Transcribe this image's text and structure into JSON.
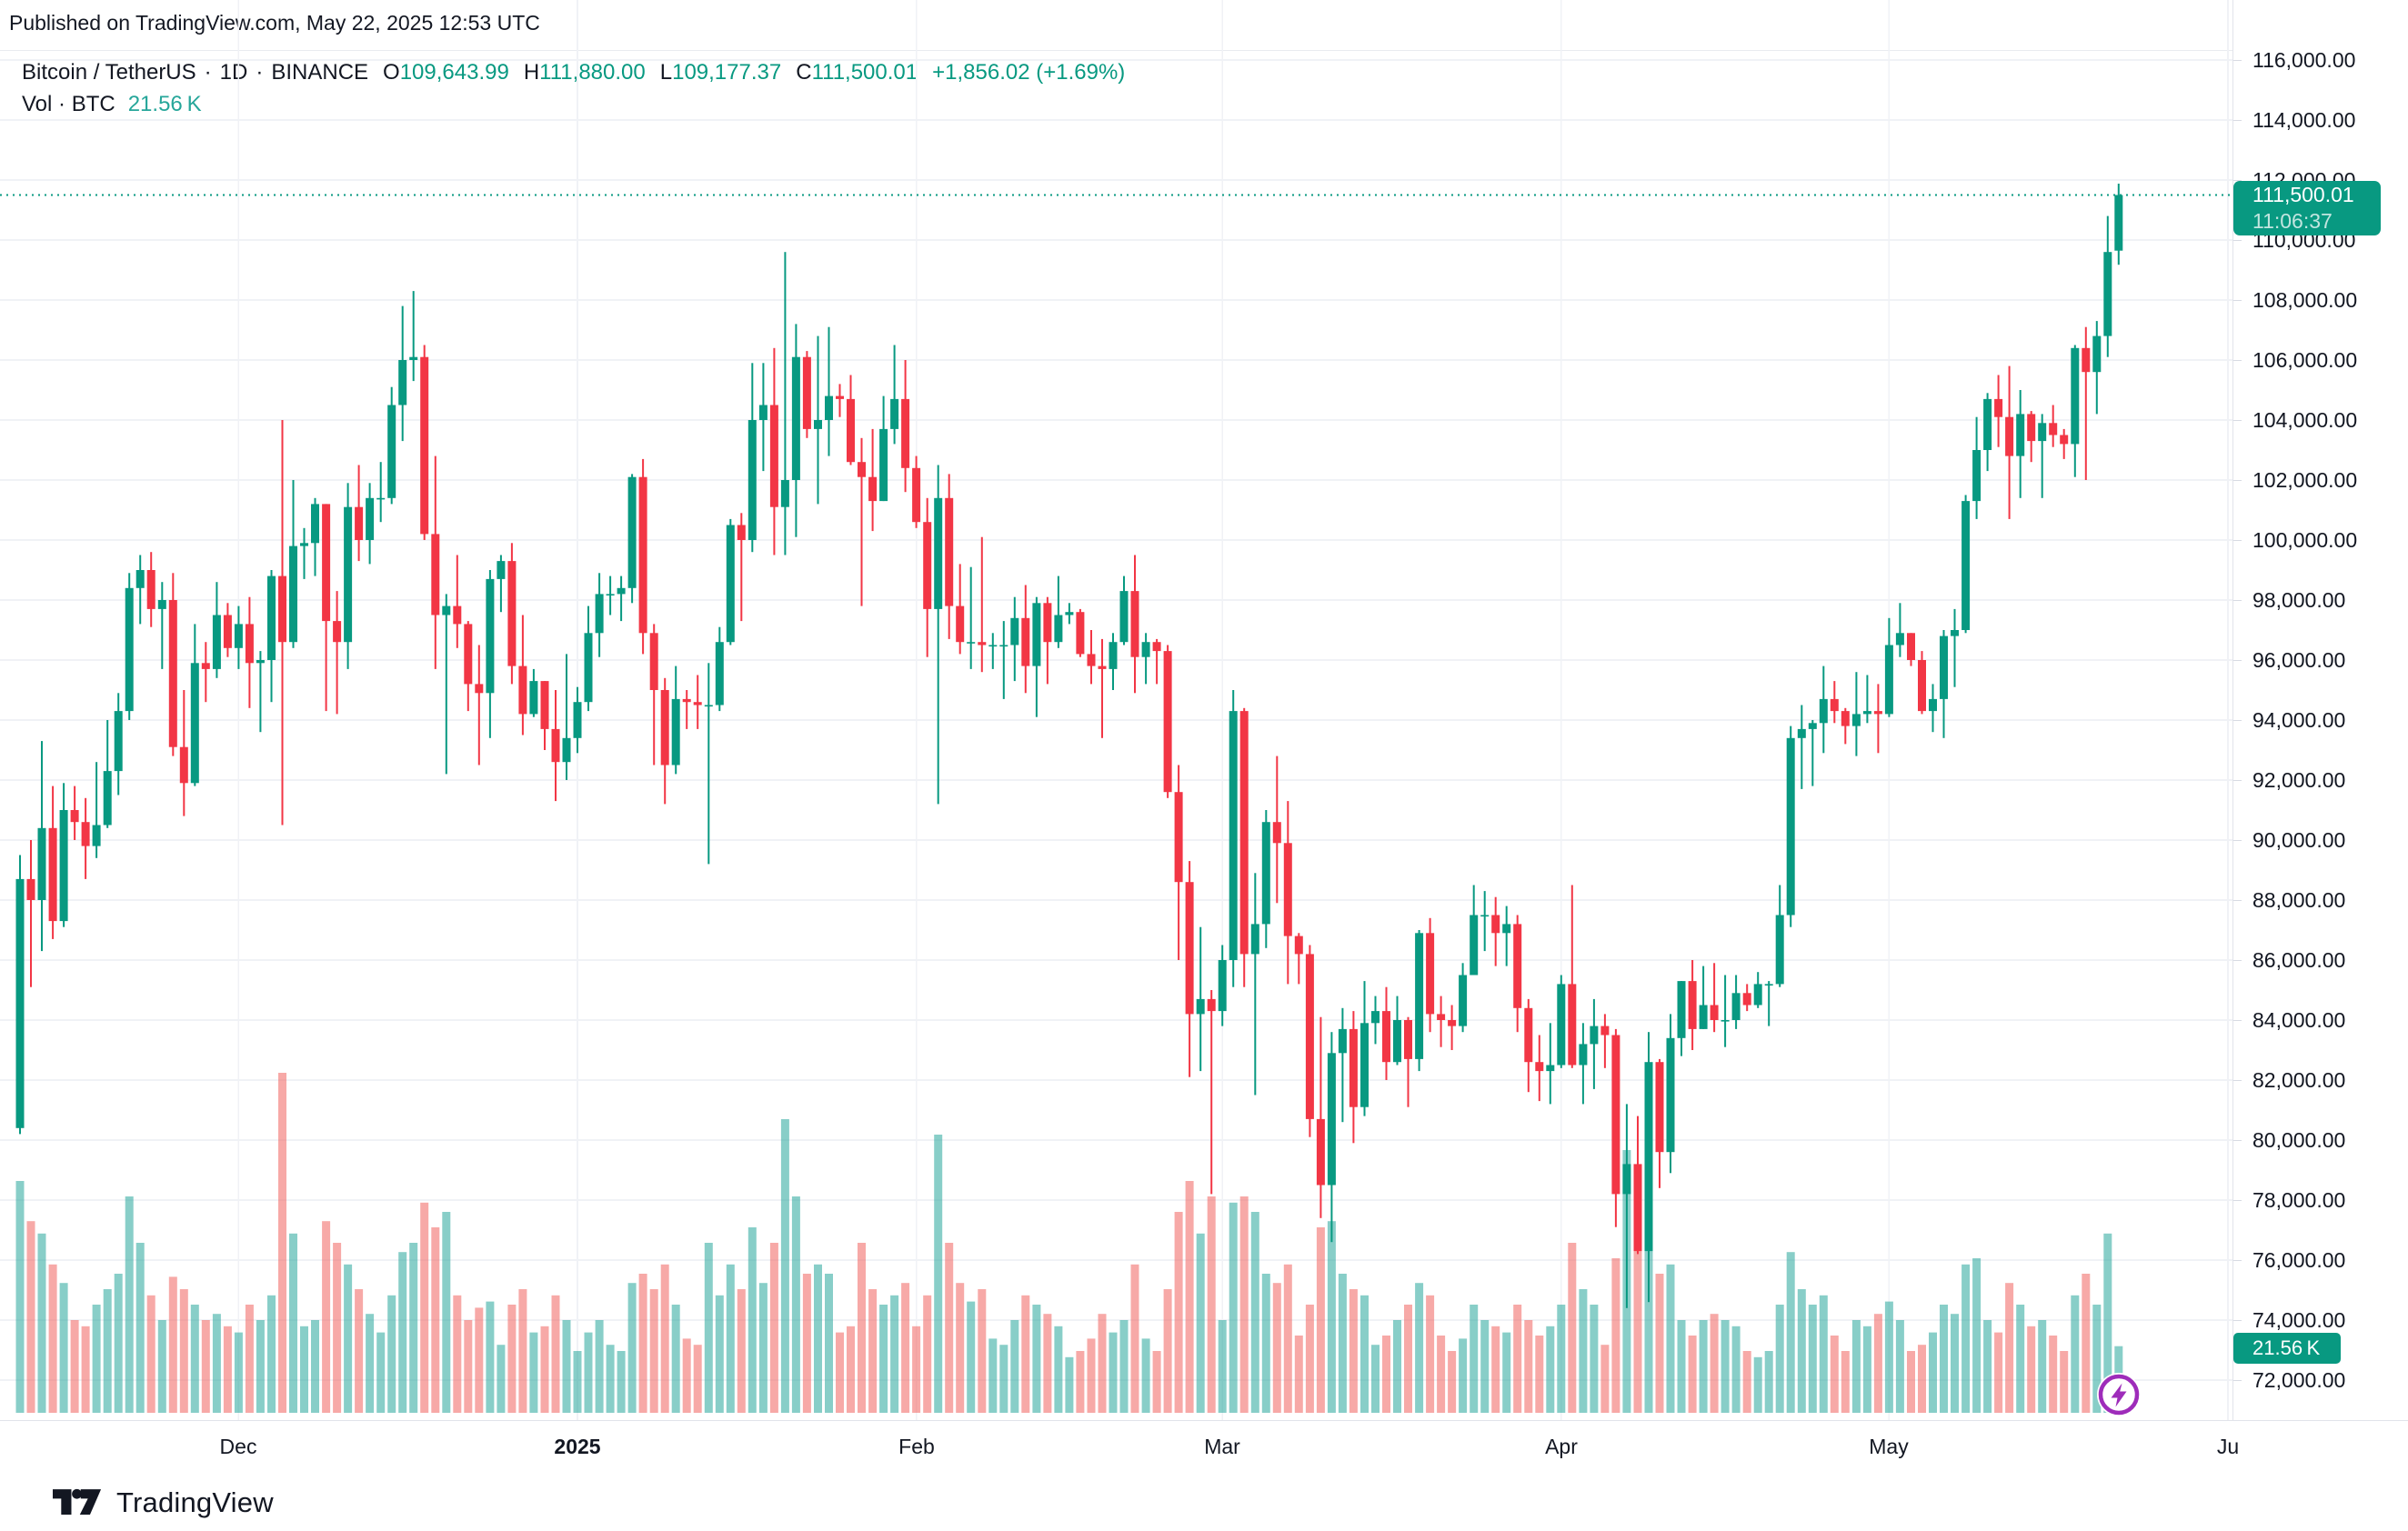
{
  "page": {
    "published": "Published on TradingView.com, May 22, 2025 12:53 UTC"
  },
  "header": {
    "symbol": "Bitcoin / TetherUS",
    "sep": "·",
    "interval": "1D",
    "exchange": "BINANCE",
    "open_label": "O",
    "open": "109,643.99",
    "high_label": "H",
    "high": "111,880.00",
    "low_label": "L",
    "low": "109,177.37",
    "close_label": "C",
    "close": "111,500.01",
    "change": "+1,856.02 (+1.69%)",
    "volume_label": "Vol · BTC",
    "volume_value": "21.56 K"
  },
  "price_badge": {
    "price": "111,500.01",
    "countdown": "11:06:37"
  },
  "volume_badge": {
    "value": "21.56 K"
  },
  "footer": {
    "brand": "TradingView"
  },
  "chart_data": {
    "type": "candlestick",
    "title": "Bitcoin / TetherUS · 1D · BINANCE",
    "interval": "1D",
    "first_candle_date": "2024-11-11",
    "last_candle_date": "2025-05-22",
    "price_axis": {
      "min": 72000,
      "max": 116000,
      "step": 2000
    },
    "volume_axis": {
      "unit": "K BTC",
      "last_volume": 21.56,
      "max_volume": 110
    },
    "last_close": 111500.01,
    "grid": true,
    "legend_position": "none",
    "time_axis": {
      "labels": [
        {
          "label": "Dec",
          "day": 20
        },
        {
          "label": "2025",
          "day": 51,
          "bold": true
        },
        {
          "label": "Feb",
          "day": 82
        },
        {
          "label": "Mar",
          "day": 110
        },
        {
          "label": "Apr",
          "day": 141
        },
        {
          "label": "May",
          "day": 171
        },
        {
          "label": "Ju",
          "day": 202
        }
      ]
    },
    "colors": {
      "up": "#089981",
      "down": "#F23645",
      "volume_up": "rgba(38,166,154,0.55)",
      "volume_down": "rgba(239,83,80,0.5)",
      "volume_text": "#26a69a",
      "text": "#131722",
      "grid": "#f0f2f6",
      "axis_border": "#e1e3ea",
      "badge_bg": "#089981",
      "boost_purple": "#9E2CBA"
    },
    "candles_format": "[open, high, low, close, volumeK] in thousand USD, one calendar day each starting 2024-11-11",
    "candles": [
      [
        80.4,
        89.5,
        80.2,
        88.7,
        75
      ],
      [
        88.7,
        90.0,
        85.1,
        88.0,
        62
      ],
      [
        88.0,
        93.3,
        86.3,
        90.4,
        58
      ],
      [
        90.4,
        91.8,
        86.7,
        87.3,
        48
      ],
      [
        87.3,
        91.9,
        87.1,
        91.0,
        42
      ],
      [
        91.0,
        91.8,
        90.0,
        90.6,
        30
      ],
      [
        90.6,
        91.4,
        88.7,
        89.8,
        28
      ],
      [
        89.8,
        92.6,
        89.4,
        90.5,
        35
      ],
      [
        90.5,
        94.0,
        90.4,
        92.3,
        40
      ],
      [
        92.3,
        94.9,
        91.5,
        94.3,
        45
      ],
      [
        94.3,
        98.9,
        94.0,
        98.4,
        70
      ],
      [
        98.4,
        99.5,
        97.2,
        99.0,
        55
      ],
      [
        99.0,
        99.6,
        97.1,
        97.7,
        38
      ],
      [
        97.7,
        98.6,
        95.7,
        98.0,
        30
      ],
      [
        98.0,
        98.9,
        92.8,
        93.1,
        44
      ],
      [
        93.1,
        95.0,
        90.8,
        91.9,
        40
      ],
      [
        91.9,
        97.2,
        91.8,
        95.9,
        35
      ],
      [
        95.9,
        96.6,
        94.6,
        95.7,
        30
      ],
      [
        95.7,
        98.6,
        95.4,
        97.5,
        32
      ],
      [
        97.5,
        97.9,
        96.1,
        96.4,
        28
      ],
      [
        96.4,
        97.8,
        95.7,
        97.2,
        26
      ],
      [
        97.2,
        98.1,
        94.4,
        95.9,
        35
      ],
      [
        95.9,
        96.3,
        93.6,
        96.0,
        30
      ],
      [
        96.0,
        99.0,
        94.6,
        98.8,
        38
      ],
      [
        98.8,
        104.0,
        90.5,
        96.6,
        110
      ],
      [
        96.6,
        102.0,
        96.4,
        99.8,
        58
      ],
      [
        99.8,
        100.4,
        98.7,
        99.9,
        28
      ],
      [
        99.9,
        101.4,
        98.8,
        101.2,
        30
      ],
      [
        101.2,
        101.2,
        94.3,
        97.3,
        62
      ],
      [
        97.3,
        98.3,
        94.2,
        96.6,
        55
      ],
      [
        96.6,
        101.9,
        95.7,
        101.1,
        48
      ],
      [
        101.1,
        102.5,
        99.3,
        100.0,
        40
      ],
      [
        100.0,
        101.9,
        99.2,
        101.4,
        32
      ],
      [
        101.4,
        102.6,
        100.6,
        101.4,
        26
      ],
      [
        101.4,
        105.1,
        101.2,
        104.5,
        38
      ],
      [
        104.5,
        107.8,
        103.3,
        106.0,
        52
      ],
      [
        106.0,
        108.3,
        105.3,
        106.1,
        55
      ],
      [
        106.1,
        106.5,
        100.0,
        100.2,
        68
      ],
      [
        100.2,
        102.8,
        95.7,
        97.5,
        60
      ],
      [
        97.5,
        98.2,
        92.2,
        97.8,
        65
      ],
      [
        97.8,
        99.5,
        96.4,
        97.2,
        38
      ],
      [
        97.2,
        97.3,
        94.3,
        95.2,
        30
      ],
      [
        95.2,
        96.5,
        92.5,
        94.9,
        34
      ],
      [
        94.9,
        99.0,
        93.4,
        98.7,
        36
      ],
      [
        98.7,
        99.5,
        97.6,
        99.3,
        22
      ],
      [
        99.3,
        99.9,
        95.2,
        95.8,
        35
      ],
      [
        95.8,
        97.5,
        93.5,
        94.2,
        40
      ],
      [
        94.2,
        95.7,
        94.1,
        95.3,
        26
      ],
      [
        95.3,
        95.3,
        93.0,
        93.7,
        28
      ],
      [
        93.7,
        95.0,
        91.3,
        92.6,
        38
      ],
      [
        92.6,
        96.2,
        92.0,
        93.4,
        30
      ],
      [
        93.4,
        95.1,
        92.9,
        94.6,
        20
      ],
      [
        94.6,
        97.8,
        94.3,
        96.9,
        26
      ],
      [
        96.9,
        98.9,
        96.1,
        98.2,
        30
      ],
      [
        98.2,
        98.8,
        97.5,
        98.2,
        22
      ],
      [
        98.2,
        98.8,
        97.3,
        98.4,
        20
      ],
      [
        98.4,
        102.2,
        97.9,
        102.1,
        42
      ],
      [
        102.1,
        102.7,
        96.2,
        96.9,
        45
      ],
      [
        96.9,
        97.2,
        92.5,
        95.0,
        40
      ],
      [
        95.0,
        95.4,
        91.2,
        92.5,
        48
      ],
      [
        92.5,
        95.8,
        92.2,
        94.7,
        35
      ],
      [
        94.7,
        95.0,
        93.7,
        94.6,
        24
      ],
      [
        94.6,
        95.5,
        93.7,
        94.5,
        22
      ],
      [
        94.5,
        95.9,
        89.2,
        94.5,
        55
      ],
      [
        94.5,
        97.1,
        94.3,
        96.6,
        38
      ],
      [
        96.6,
        100.7,
        96.5,
        100.5,
        48
      ],
      [
        100.5,
        100.9,
        97.3,
        100.0,
        40
      ],
      [
        100.0,
        105.9,
        99.6,
        104.0,
        60
      ],
      [
        104.0,
        105.9,
        102.3,
        104.5,
        42
      ],
      [
        104.5,
        106.4,
        99.5,
        101.1,
        55
      ],
      [
        101.1,
        109.6,
        99.5,
        102.0,
        95
      ],
      [
        102.0,
        107.2,
        100.1,
        106.1,
        70
      ],
      [
        106.1,
        106.3,
        103.4,
        103.7,
        45
      ],
      [
        103.7,
        106.8,
        101.2,
        104.0,
        48
      ],
      [
        104.0,
        107.1,
        102.8,
        104.8,
        45
      ],
      [
        104.8,
        105.2,
        104.1,
        104.7,
        26
      ],
      [
        104.7,
        105.5,
        102.5,
        102.6,
        28
      ],
      [
        102.6,
        103.4,
        97.8,
        102.1,
        55
      ],
      [
        102.1,
        103.7,
        100.3,
        101.3,
        40
      ],
      [
        101.3,
        104.8,
        101.3,
        103.7,
        35
      ],
      [
        103.7,
        106.5,
        103.2,
        104.7,
        38
      ],
      [
        104.7,
        106.0,
        101.6,
        102.4,
        42
      ],
      [
        102.4,
        102.8,
        100.4,
        100.6,
        28
      ],
      [
        100.6,
        101.4,
        96.1,
        97.7,
        38
      ],
      [
        97.7,
        102.5,
        91.2,
        101.4,
        90
      ],
      [
        101.4,
        102.2,
        96.7,
        97.8,
        55
      ],
      [
        97.8,
        99.2,
        96.2,
        96.6,
        42
      ],
      [
        96.6,
        99.1,
        95.7,
        96.6,
        36
      ],
      [
        96.6,
        100.1,
        95.6,
        96.5,
        40
      ],
      [
        96.5,
        96.9,
        95.7,
        96.5,
        24
      ],
      [
        96.5,
        97.3,
        94.7,
        96.5,
        22
      ],
      [
        96.5,
        98.1,
        95.3,
        97.4,
        30
      ],
      [
        97.4,
        98.5,
        94.9,
        95.8,
        38
      ],
      [
        95.8,
        98.1,
        94.1,
        97.9,
        35
      ],
      [
        97.9,
        98.1,
        95.2,
        96.6,
        32
      ],
      [
        96.6,
        98.8,
        96.4,
        97.5,
        28
      ],
      [
        97.5,
        97.9,
        97.2,
        97.6,
        18
      ],
      [
        97.6,
        97.7,
        96.1,
        96.2,
        20
      ],
      [
        96.2,
        97.0,
        95.2,
        95.8,
        24
      ],
      [
        95.8,
        96.7,
        93.4,
        95.7,
        32
      ],
      [
        95.7,
        96.9,
        95.0,
        96.6,
        26
      ],
      [
        96.6,
        98.8,
        96.5,
        98.3,
        30
      ],
      [
        98.3,
        99.5,
        94.9,
        96.1,
        48
      ],
      [
        96.1,
        96.9,
        95.2,
        96.6,
        24
      ],
      [
        96.6,
        96.7,
        95.2,
        96.3,
        20
      ],
      [
        96.3,
        96.5,
        91.4,
        91.6,
        40
      ],
      [
        91.6,
        92.5,
        86.0,
        88.6,
        65
      ],
      [
        88.6,
        89.3,
        82.1,
        84.2,
        75
      ],
      [
        84.2,
        87.1,
        82.3,
        84.7,
        58
      ],
      [
        84.7,
        85.0,
        78.2,
        84.3,
        70
      ],
      [
        84.3,
        86.5,
        83.8,
        86.0,
        30
      ],
      [
        86.0,
        95.0,
        85.1,
        94.3,
        68
      ],
      [
        94.3,
        94.4,
        85.1,
        86.2,
        70
      ],
      [
        86.2,
        88.9,
        81.5,
        87.2,
        65
      ],
      [
        87.2,
        91.0,
        86.4,
        90.6,
        45
      ],
      [
        90.6,
        92.8,
        87.9,
        89.9,
        42
      ],
      [
        89.9,
        91.3,
        85.2,
        86.8,
        48
      ],
      [
        86.8,
        86.9,
        85.2,
        86.2,
        25
      ],
      [
        86.2,
        86.5,
        80.1,
        80.7,
        35
      ],
      [
        80.7,
        84.1,
        77.4,
        78.5,
        60
      ],
      [
        78.5,
        83.6,
        76.6,
        82.9,
        62
      ],
      [
        82.9,
        84.4,
        80.6,
        83.7,
        45
      ],
      [
        83.7,
        84.3,
        79.9,
        81.1,
        40
      ],
      [
        81.1,
        85.3,
        80.8,
        83.9,
        38
      ],
      [
        83.9,
        84.8,
        83.2,
        84.3,
        22
      ],
      [
        84.3,
        85.1,
        82.0,
        82.6,
        25
      ],
      [
        82.6,
        84.8,
        82.5,
        84.0,
        30
      ],
      [
        84.0,
        84.1,
        81.1,
        82.7,
        35
      ],
      [
        82.7,
        87.0,
        82.3,
        86.9,
        42
      ],
      [
        86.9,
        87.4,
        83.6,
        84.2,
        38
      ],
      [
        84.2,
        84.8,
        83.1,
        84.0,
        25
      ],
      [
        84.0,
        84.5,
        83.0,
        83.8,
        20
      ],
      [
        83.8,
        85.9,
        83.6,
        85.5,
        24
      ],
      [
        85.5,
        88.5,
        85.5,
        87.5,
        35
      ],
      [
        87.5,
        88.3,
        86.3,
        87.5,
        30
      ],
      [
        87.5,
        88.1,
        85.8,
        86.9,
        28
      ],
      [
        86.9,
        87.8,
        85.8,
        87.2,
        26
      ],
      [
        87.2,
        87.5,
        83.6,
        84.4,
        35
      ],
      [
        84.4,
        84.7,
        81.6,
        82.6,
        30
      ],
      [
        82.6,
        83.5,
        81.3,
        82.3,
        25
      ],
      [
        82.3,
        83.9,
        81.2,
        82.5,
        28
      ],
      [
        82.5,
        85.5,
        82.4,
        85.2,
        35
      ],
      [
        85.2,
        88.5,
        82.4,
        82.5,
        55
      ],
      [
        82.5,
        83.9,
        81.2,
        83.2,
        40
      ],
      [
        83.2,
        84.7,
        81.7,
        83.8,
        35
      ],
      [
        83.8,
        84.2,
        82.4,
        83.5,
        22
      ],
      [
        83.5,
        83.7,
        77.1,
        78.2,
        50
      ],
      [
        78.2,
        81.2,
        74.4,
        79.2,
        85
      ],
      [
        79.2,
        80.8,
        76.2,
        76.3,
        60
      ],
      [
        76.3,
        83.6,
        74.6,
        82.6,
        82
      ],
      [
        82.6,
        82.7,
        78.4,
        79.6,
        45
      ],
      [
        79.6,
        84.2,
        78.9,
        83.4,
        48
      ],
      [
        83.4,
        85.3,
        82.8,
        85.3,
        30
      ],
      [
        85.3,
        86.0,
        83.0,
        83.7,
        25
      ],
      [
        83.7,
        85.8,
        83.7,
        84.5,
        30
      ],
      [
        84.5,
        85.9,
        83.6,
        84.0,
        32
      ],
      [
        84.0,
        85.5,
        83.1,
        84.0,
        30
      ],
      [
        84.0,
        85.5,
        83.7,
        84.9,
        28
      ],
      [
        84.9,
        85.2,
        84.3,
        84.5,
        20
      ],
      [
        84.5,
        85.6,
        84.4,
        85.2,
        18
      ],
      [
        85.2,
        85.3,
        83.8,
        85.2,
        20
      ],
      [
        85.2,
        88.5,
        85.1,
        87.5,
        35
      ],
      [
        87.5,
        93.8,
        87.1,
        93.4,
        52
      ],
      [
        93.4,
        94.5,
        91.7,
        93.7,
        40
      ],
      [
        93.7,
        94.0,
        91.8,
        93.9,
        35
      ],
      [
        93.9,
        95.8,
        92.9,
        94.7,
        38
      ],
      [
        94.7,
        95.3,
        93.9,
        94.3,
        25
      ],
      [
        94.3,
        94.4,
        93.2,
        93.8,
        20
      ],
      [
        93.8,
        95.6,
        92.8,
        94.2,
        30
      ],
      [
        94.2,
        95.5,
        93.9,
        94.3,
        28
      ],
      [
        94.3,
        95.2,
        92.9,
        94.2,
        32
      ],
      [
        94.2,
        97.4,
        94.1,
        96.5,
        36
      ],
      [
        96.5,
        97.9,
        96.1,
        96.9,
        30
      ],
      [
        96.9,
        96.9,
        95.8,
        96.0,
        20
      ],
      [
        96.0,
        96.3,
        94.2,
        94.3,
        22
      ],
      [
        94.3,
        95.2,
        93.6,
        94.7,
        26
      ],
      [
        94.7,
        97.0,
        93.4,
        96.8,
        35
      ],
      [
        96.8,
        97.7,
        95.1,
        97.0,
        32
      ],
      [
        97.0,
        101.5,
        96.9,
        101.3,
        48
      ],
      [
        101.3,
        104.1,
        100.7,
        103.0,
        50
      ],
      [
        103.0,
        104.9,
        102.3,
        104.7,
        30
      ],
      [
        104.7,
        105.5,
        103.1,
        104.1,
        26
      ],
      [
        104.1,
        105.8,
        100.7,
        102.8,
        42
      ],
      [
        102.8,
        105.0,
        101.4,
        104.2,
        35
      ],
      [
        104.2,
        104.3,
        102.6,
        103.3,
        28
      ],
      [
        103.3,
        104.2,
        101.4,
        103.9,
        30
      ],
      [
        103.9,
        104.5,
        103.1,
        103.5,
        25
      ],
      [
        103.5,
        103.7,
        102.7,
        103.2,
        20
      ],
      [
        103.2,
        106.5,
        102.1,
        106.4,
        38
      ],
      [
        106.4,
        107.1,
        102.0,
        105.6,
        45
      ],
      [
        105.6,
        107.3,
        104.2,
        106.8,
        35
      ],
      [
        106.8,
        110.8,
        106.1,
        109.6,
        58
      ],
      [
        109.644,
        111.88,
        109.177,
        111.5,
        21.56
      ]
    ]
  }
}
